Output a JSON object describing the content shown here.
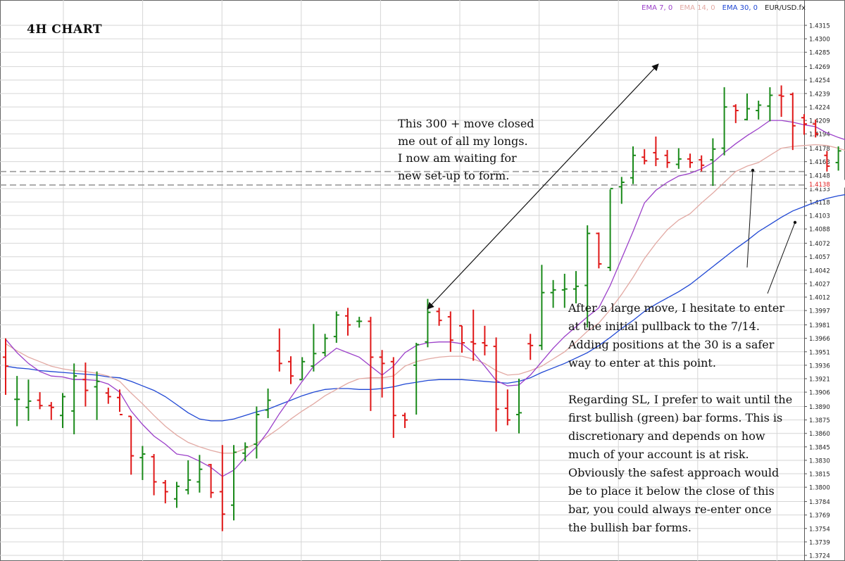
{
  "chart_title": "4H CHART",
  "legend": [
    {
      "label": "EMA 7, 0",
      "color": "#9b3fc9"
    },
    {
      "label": "EMA 14, 0",
      "color": "#e2a9a3"
    },
    {
      "label": "EMA 30, 0",
      "color": "#1f47d4"
    },
    {
      "label": "EUR/USD.fx",
      "color": "#222222"
    }
  ],
  "colors": {
    "bull": "#1a8a1a",
    "bear": "#e01818",
    "ema7": "#9b3fc9",
    "ema14": "#e2a9a3",
    "ema30": "#1f47d4",
    "grid": "#d6d6d6",
    "dash": "#9a9a9a",
    "arrow": "#111111",
    "current_price": "#e01818"
  },
  "notes": {
    "top": "This 300 + move closed\nme out of all my longs.\nI now am waiting for\nnew set-up to form.",
    "bottom_1": "After a large move, I hesitate to enter at the initial pullback to the 7/14. Adding positions at the 30 is a safer way to enter at this point.",
    "bottom_2": "Regarding SL, I prefer to wait until the first bullish (green) bar forms. This is discretionary and depends on how much of your account is at risk. Obviously the safest approach would be to place it below the close of this bar, you could always re-enter once the bullish bar forms."
  },
  "chart_data": {
    "type": "ohlc",
    "symbol": "EUR/USD.fx",
    "timeframe": "4H",
    "ylim": [
      1.3724,
      1.432
    ],
    "y_ticks": [
      "1.4315",
      "1.4300",
      "1.4285",
      "1.4269",
      "1.4254",
      "1.4239",
      "1.4224",
      "1.4209",
      "1.4194",
      "1.4178",
      "1.4163",
      "1.4148",
      "1.4133",
      "1.4118",
      "1.4103",
      "1.4088",
      "1.4072",
      "1.4057",
      "1.4042",
      "1.4027",
      "1.4012",
      "1.3997",
      "1.3981",
      "1.3966",
      "1.3951",
      "1.3936",
      "1.3921",
      "1.3906",
      "1.3890",
      "1.3875",
      "1.3860",
      "1.3845",
      "1.3830",
      "1.3815",
      "1.3800",
      "1.3784",
      "1.3769",
      "1.3754",
      "1.3739",
      "1.3724"
    ],
    "current_price": "1.4138",
    "horizontal_levels": [
      1.4152,
      1.4137
    ],
    "bars": [
      {
        "o": 1.3945,
        "h": 1.3966,
        "l": 1.3903,
        "c": 1.3935
      },
      {
        "o": 1.3898,
        "h": 1.3924,
        "l": 1.3868,
        "c": 1.3898
      },
      {
        "o": 1.3889,
        "h": 1.392,
        "l": 1.3874,
        "c": 1.3896
      },
      {
        "o": 1.3897,
        "h": 1.3906,
        "l": 1.3887,
        "c": 1.3891
      },
      {
        "o": 1.3891,
        "h": 1.3895,
        "l": 1.3875,
        "c": 1.3889
      },
      {
        "o": 1.388,
        "h": 1.3905,
        "l": 1.3866,
        "c": 1.3901
      },
      {
        "o": 1.3885,
        "h": 1.3938,
        "l": 1.3859,
        "c": 1.3924
      },
      {
        "o": 1.392,
        "h": 1.3939,
        "l": 1.389,
        "c": 1.3908
      },
      {
        "o": 1.3912,
        "h": 1.3929,
        "l": 1.3875,
        "c": 1.3918
      },
      {
        "o": 1.3905,
        "h": 1.3911,
        "l": 1.3893,
        "c": 1.3901
      },
      {
        "o": 1.39,
        "h": 1.3909,
        "l": 1.3884,
        "c": 1.3881
      },
      {
        "o": 1.3879,
        "h": 1.3879,
        "l": 1.3814,
        "c": 1.3835
      },
      {
        "o": 1.3833,
        "h": 1.3846,
        "l": 1.3808,
        "c": 1.3837
      },
      {
        "o": 1.3834,
        "h": 1.3837,
        "l": 1.3791,
        "c": 1.3806
      },
      {
        "o": 1.3805,
        "h": 1.3808,
        "l": 1.3782,
        "c": 1.3795
      },
      {
        "o": 1.3787,
        "h": 1.3806,
        "l": 1.3777,
        "c": 1.3801
      },
      {
        "o": 1.3797,
        "h": 1.383,
        "l": 1.3792,
        "c": 1.3808
      },
      {
        "o": 1.3806,
        "h": 1.3836,
        "l": 1.3794,
        "c": 1.382
      },
      {
        "o": 1.3825,
        "h": 1.3826,
        "l": 1.3788,
        "c": 1.3794
      },
      {
        "o": 1.3795,
        "h": 1.3847,
        "l": 1.3751,
        "c": 1.377
      },
      {
        "o": 1.378,
        "h": 1.3847,
        "l": 1.3763,
        "c": 1.3839
      },
      {
        "o": 1.3838,
        "h": 1.385,
        "l": 1.3829,
        "c": 1.3845
      },
      {
        "o": 1.3848,
        "h": 1.389,
        "l": 1.3832,
        "c": 1.3881
      },
      {
        "o": 1.3886,
        "h": 1.391,
        "l": 1.3877,
        "c": 1.3897
      },
      {
        "o": 1.3952,
        "h": 1.3977,
        "l": 1.3929,
        "c": 1.3938
      },
      {
        "o": 1.394,
        "h": 1.3946,
        "l": 1.3915,
        "c": 1.3924
      },
      {
        "o": 1.392,
        "h": 1.3945,
        "l": 1.392,
        "c": 1.394
      },
      {
        "o": 1.3935,
        "h": 1.3982,
        "l": 1.3929,
        "c": 1.3949
      },
      {
        "o": 1.395,
        "h": 1.3971,
        "l": 1.3946,
        "c": 1.3966
      },
      {
        "o": 1.3968,
        "h": 1.3996,
        "l": 1.3961,
        "c": 1.3992
      },
      {
        "o": 1.3991,
        "h": 1.4,
        "l": 1.3969,
        "c": 1.3981
      },
      {
        "o": 1.3985,
        "h": 1.399,
        "l": 1.3978,
        "c": 1.3985
      },
      {
        "o": 1.3985,
        "h": 1.399,
        "l": 1.3885,
        "c": 1.3945
      },
      {
        "o": 1.3945,
        "h": 1.3953,
        "l": 1.39,
        "c": 1.3938
      },
      {
        "o": 1.394,
        "h": 1.3945,
        "l": 1.3855,
        "c": 1.388
      },
      {
        "o": 1.388,
        "h": 1.3883,
        "l": 1.3866,
        "c": 1.3875
      },
      {
        "o": 1.3936,
        "h": 1.3961,
        "l": 1.3881,
        "c": 1.3959
      },
      {
        "o": 1.3962,
        "h": 1.401,
        "l": 1.3956,
        "c": 1.3995
      },
      {
        "o": 1.3996,
        "h": 1.4,
        "l": 1.398,
        "c": 1.3986
      },
      {
        "o": 1.399,
        "h": 1.3996,
        "l": 1.3951,
        "c": 1.3964
      },
      {
        "o": 1.398,
        "h": 1.398,
        "l": 1.395,
        "c": 1.3961
      },
      {
        "o": 1.3962,
        "h": 1.3998,
        "l": 1.3941,
        "c": 1.396
      },
      {
        "o": 1.3961,
        "h": 1.398,
        "l": 1.3947,
        "c": 1.3958
      },
      {
        "o": 1.3957,
        "h": 1.3967,
        "l": 1.3862,
        "c": 1.3887
      },
      {
        "o": 1.3888,
        "h": 1.3909,
        "l": 1.3869,
        "c": 1.3875
      },
      {
        "o": 1.3881,
        "h": 1.3921,
        "l": 1.386,
        "c": 1.3883
      },
      {
        "o": 1.396,
        "h": 1.3971,
        "l": 1.3942,
        "c": 1.3958
      },
      {
        "o": 1.3958,
        "h": 1.4048,
        "l": 1.3953,
        "c": 1.4017
      },
      {
        "o": 1.4017,
        "h": 1.4031,
        "l": 1.4,
        "c": 1.402
      },
      {
        "o": 1.402,
        "h": 1.4038,
        "l": 1.4,
        "c": 1.4021
      },
      {
        "o": 1.4021,
        "h": 1.4041,
        "l": 1.4005,
        "c": 1.4024
      },
      {
        "o": 1.4025,
        "h": 1.4092,
        "l": 1.3978,
        "c": 1.4083
      },
      {
        "o": 1.4083,
        "h": 1.4084,
        "l": 1.4044,
        "c": 1.4049
      },
      {
        "o": 1.4045,
        "h": 1.4132,
        "l": 1.4041,
        "c": 1.4133
      },
      {
        "o": 1.4135,
        "h": 1.4146,
        "l": 1.4116,
        "c": 1.414
      },
      {
        "o": 1.4145,
        "h": 1.418,
        "l": 1.4138,
        "c": 1.417
      },
      {
        "o": 1.4168,
        "h": 1.4177,
        "l": 1.416,
        "c": 1.4164
      },
      {
        "o": 1.4173,
        "h": 1.4191,
        "l": 1.4158,
        "c": 1.4166
      },
      {
        "o": 1.417,
        "h": 1.4176,
        "l": 1.4156,
        "c": 1.4162
      },
      {
        "o": 1.416,
        "h": 1.4178,
        "l": 1.4155,
        "c": 1.4166
      },
      {
        "o": 1.4166,
        "h": 1.4172,
        "l": 1.4156,
        "c": 1.4162
      },
      {
        "o": 1.4165,
        "h": 1.417,
        "l": 1.4152,
        "c": 1.4159
      },
      {
        "o": 1.4165,
        "h": 1.4189,
        "l": 1.4136,
        "c": 1.4177
      },
      {
        "o": 1.4178,
        "h": 1.4246,
        "l": 1.417,
        "c": 1.4224
      },
      {
        "o": 1.4225,
        "h": 1.4227,
        "l": 1.4206,
        "c": 1.422
      },
      {
        "o": 1.421,
        "h": 1.4239,
        "l": 1.4209,
        "c": 1.4222
      },
      {
        "o": 1.422,
        "h": 1.4231,
        "l": 1.421,
        "c": 1.4226
      },
      {
        "o": 1.4225,
        "h": 1.4246,
        "l": 1.4208,
        "c": 1.4237
      },
      {
        "o": 1.4237,
        "h": 1.4248,
        "l": 1.4213,
        "c": 1.4236
      },
      {
        "o": 1.4238,
        "h": 1.424,
        "l": 1.4176,
        "c": 1.4203
      },
      {
        "o": 1.4212,
        "h": 1.4216,
        "l": 1.4193,
        "c": 1.4205
      },
      {
        "o": 1.4205,
        "h": 1.421,
        "l": 1.419,
        "c": 1.4194
      },
      {
        "o": 1.417,
        "h": 1.4175,
        "l": 1.4152,
        "c": 1.4158
      },
      {
        "o": 1.4162,
        "h": 1.418,
        "l": 1.4153,
        "c": 1.4175
      },
      {
        "o": 1.4182,
        "h": 1.4186,
        "l": 1.4142,
        "c": 1.4158
      },
      {
        "o": 1.416,
        "h": 1.4165,
        "l": 1.4145,
        "c": 1.4159
      },
      {
        "o": 1.42,
        "h": 1.4211,
        "l": 1.4138,
        "c": 1.4155
      },
      {
        "o": 1.4152,
        "h": 1.416,
        "l": 1.4104,
        "c": 1.4139
      }
    ],
    "ema7": [
      1.3965,
      1.395,
      1.3938,
      1.3929,
      1.3924,
      1.3923,
      1.392,
      1.392,
      1.3919,
      1.3915,
      1.3906,
      1.3885,
      1.387,
      1.3857,
      1.3848,
      1.3837,
      1.3835,
      1.3829,
      1.3822,
      1.3812,
      1.3819,
      1.3833,
      1.3845,
      1.3862,
      1.3882,
      1.39,
      1.3918,
      1.3935,
      1.3945,
      1.3955,
      1.395,
      1.3945,
      1.3935,
      1.3925,
      1.3935,
      1.395,
      1.3958,
      1.3961,
      1.3962,
      1.3962,
      1.396,
      1.395,
      1.3935,
      1.3919,
      1.3913,
      1.3914,
      1.3925,
      1.394,
      1.3955,
      1.3968,
      1.3979,
      1.399,
      1.4,
      1.4025,
      1.4055,
      1.4085,
      1.4117,
      1.4131,
      1.414,
      1.4147,
      1.415,
      1.4155,
      1.4162,
      1.4173,
      1.4183,
      1.4192,
      1.42,
      1.4209,
      1.4209,
      1.4207,
      1.4204,
      1.4202,
      1.4195,
      1.419,
      1.4186,
      1.418,
      1.4172,
      1.4166
    ],
    "ema14": [
      1.396,
      1.3952,
      1.3945,
      1.394,
      1.3935,
      1.3932,
      1.393,
      1.3929,
      1.3927,
      1.3924,
      1.3918,
      1.3905,
      1.3893,
      1.388,
      1.3868,
      1.3858,
      1.385,
      1.3845,
      1.3841,
      1.3838,
      1.3838,
      1.3843,
      1.3849,
      1.3857,
      1.3866,
      1.3876,
      1.3885,
      1.3893,
      1.3902,
      1.3909,
      1.3916,
      1.3921,
      1.3922,
      1.3922,
      1.3924,
      1.3935,
      1.394,
      1.3943,
      1.3945,
      1.3946,
      1.3946,
      1.3943,
      1.3938,
      1.393,
      1.3925,
      1.3926,
      1.393,
      1.3935,
      1.3943,
      1.3951,
      1.3962,
      1.3974,
      1.3983,
      1.3998,
      1.4015,
      1.4034,
      1.4055,
      1.4072,
      1.4087,
      1.4098,
      1.4105,
      1.4117,
      1.4128,
      1.414,
      1.4152,
      1.4158,
      1.4162,
      1.417,
      1.4178,
      1.418,
      1.4181,
      1.4182,
      1.4181,
      1.4178,
      1.4174,
      1.4168,
      1.4163,
      1.4158
    ],
    "ema30": [
      1.3935,
      1.3933,
      1.3932,
      1.393,
      1.3929,
      1.3928,
      1.3927,
      1.3926,
      1.3925,
      1.3923,
      1.3922,
      1.3918,
      1.3913,
      1.3908,
      1.3901,
      1.3892,
      1.3883,
      1.3876,
      1.3874,
      1.3874,
      1.3876,
      1.388,
      1.3884,
      1.3887,
      1.3892,
      1.3897,
      1.3902,
      1.3906,
      1.3909,
      1.391,
      1.391,
      1.3909,
      1.3909,
      1.391,
      1.3912,
      1.3915,
      1.3917,
      1.3919,
      1.392,
      1.392,
      1.392,
      1.3919,
      1.3918,
      1.3917,
      1.3916,
      1.3918,
      1.3922,
      1.3928,
      1.3933,
      1.3938,
      1.3944,
      1.395,
      1.3958,
      1.3967,
      1.3977,
      1.3986,
      1.3996,
      1.4004,
      1.4011,
      1.4018,
      1.4026,
      1.4036,
      1.4046,
      1.4056,
      1.4066,
      1.4075,
      1.4085,
      1.4093,
      1.4101,
      1.4108,
      1.4113,
      1.4118,
      1.4122,
      1.4125,
      1.4127,
      1.4129,
      1.413,
      1.413
    ]
  }
}
